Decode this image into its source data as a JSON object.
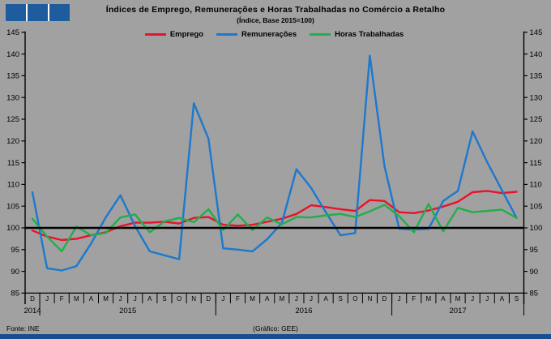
{
  "title": "Índices de Emprego, Remunerações e Horas Trabalhadas no Comércio a Retalho",
  "subtitle": "(Índice, Base 2015=100)",
  "footer": {
    "source": "Fonte: INE",
    "credit": "(Gráfico: GEE)"
  },
  "logo": {
    "color": "#1e5c9e",
    "squares": 3
  },
  "colors": {
    "background": "#a1a1a1",
    "axis": "#000000",
    "baseline": "#000000",
    "bottom_bar": "#174f8e"
  },
  "chart_data": {
    "type": "line",
    "x_labels": [
      "D",
      "J",
      "F",
      "M",
      "A",
      "M",
      "J",
      "J",
      "A",
      "S",
      "O",
      "N",
      "D",
      "J",
      "F",
      "M",
      "A",
      "M",
      "J",
      "J",
      "A",
      "S",
      "O",
      "N",
      "D",
      "J",
      "F",
      "M",
      "A",
      "M",
      "J",
      "J",
      "A",
      "S"
    ],
    "year_groups": [
      {
        "year": "2014",
        "count": 1
      },
      {
        "year": "2015",
        "count": 12
      },
      {
        "year": "2016",
        "count": 12
      },
      {
        "year": "2017",
        "count": 9
      }
    ],
    "ylim": [
      85,
      145
    ],
    "ytick_step": 5,
    "yticks": [
      85,
      90,
      95,
      100,
      105,
      110,
      115,
      120,
      125,
      130,
      135,
      140,
      145
    ],
    "baseline": 100,
    "grid": false,
    "legend_position": "top-center",
    "series": [
      {
        "name": "Emprego",
        "color": "#e8132b",
        "values": [
          99.4,
          98.0,
          97.2,
          97.5,
          98.3,
          99.0,
          100.4,
          101.2,
          101.2,
          101.4,
          101.0,
          102.3,
          102.5,
          100.7,
          100.5,
          100.7,
          101.4,
          102.1,
          103.2,
          105.2,
          104.8,
          104.3,
          103.9,
          106.4,
          106.2,
          103.6,
          103.4,
          104.0,
          104.9,
          106.0,
          108.2,
          108.5,
          108.0,
          108.3
        ]
      },
      {
        "name": "Remunerações",
        "color": "#1d78cf",
        "values": [
          108.2,
          90.7,
          90.2,
          91.2,
          96.4,
          102.4,
          107.5,
          100.4,
          94.6,
          93.7,
          92.8,
          128.7,
          120.5,
          95.3,
          95.0,
          94.6,
          97.4,
          101.1,
          113.5,
          109.2,
          103.6,
          98.3,
          98.8,
          139.6,
          114.2,
          99.8,
          99.6,
          99.8,
          106.2,
          108.5,
          122.2,
          115.1,
          108.7,
          102.3
        ]
      },
      {
        "name": "Horas Trabalhadas",
        "color": "#22ae4a",
        "values": [
          102.1,
          98.0,
          94.6,
          100.3,
          98.3,
          98.8,
          102.4,
          103.1,
          99.0,
          101.5,
          102.3,
          101.3,
          104.3,
          99.5,
          103.1,
          99.5,
          102.4,
          100.8,
          102.5,
          102.4,
          102.9,
          103.2,
          102.5,
          103.8,
          105.3,
          102.7,
          99.0,
          105.5,
          99.2,
          104.6,
          103.6,
          103.9,
          104.2,
          102.3
        ]
      }
    ]
  }
}
